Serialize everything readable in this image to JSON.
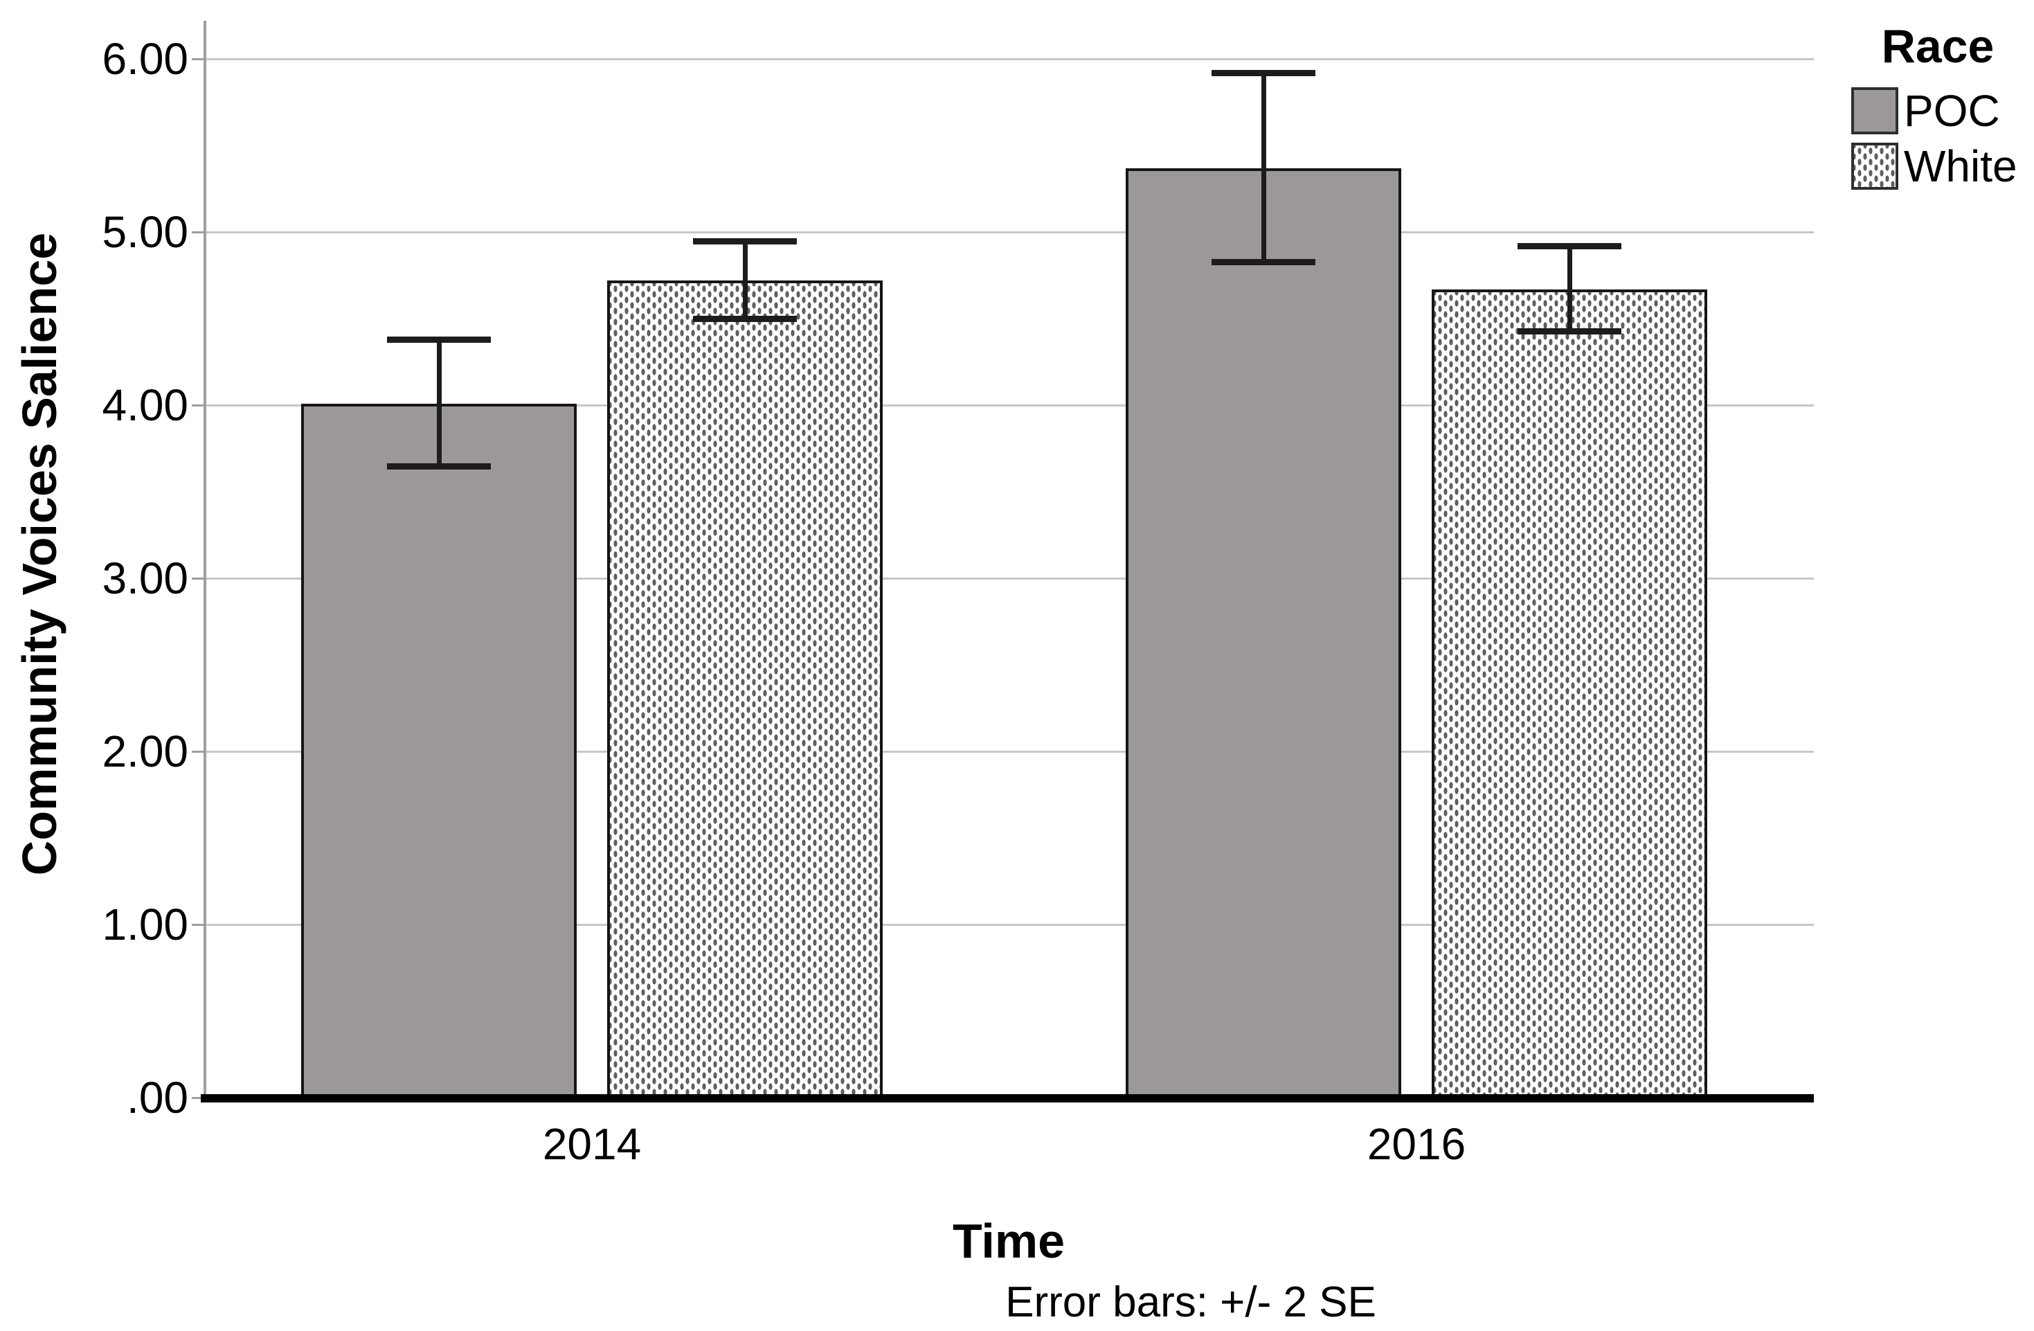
{
  "figure": {
    "background": "#ffffff",
    "y_axis": {
      "title": "Community Voices Salience",
      "tick_labels": [
        ".00",
        "1.00",
        "2.00",
        "3.00",
        "4.00",
        "5.00",
        "6.00"
      ],
      "tick_values": [
        0,
        1,
        2,
        3,
        4,
        5,
        6
      ]
    },
    "x_axis": {
      "title": "Time",
      "categories": [
        "2014",
        "2016"
      ]
    },
    "legend": {
      "title": "Race",
      "items": [
        {
          "label": "POC",
          "pattern": "solid"
        },
        {
          "label": "White",
          "pattern": "dotted"
        }
      ]
    },
    "caption": "Error bars: +/- 2 SE",
    "colors": {
      "poc_fill": "#9c9899",
      "white_dot": "#5f5f5f",
      "bar_border": "#161616",
      "gridline": "#c7c7c7",
      "axis_line": "#9e9e9e",
      "baseline": "#000000",
      "error_bar": "#1c1c1c",
      "text": "#000000"
    }
  },
  "chart_data": {
    "type": "bar",
    "title": "",
    "xlabel": "Time",
    "ylabel": "Community Voices Salience",
    "categories": [
      "2014",
      "2016"
    ],
    "series": [
      {
        "name": "POC",
        "pattern": "solid",
        "values": [
          4.01,
          5.37
        ],
        "error_low": [
          3.65,
          4.83
        ],
        "error_high": [
          4.38,
          5.92
        ]
      },
      {
        "name": "White",
        "pattern": "dotted",
        "values": [
          4.72,
          4.67
        ],
        "error_low": [
          4.5,
          4.43
        ],
        "error_high": [
          4.95,
          4.92
        ]
      }
    ],
    "error_note": "Error bars: +/- 2 SE",
    "legend_title": "Race",
    "legend_position": "top-right",
    "grid": true,
    "ylim": [
      0,
      6.22
    ],
    "ytick_interval": 1.0
  }
}
